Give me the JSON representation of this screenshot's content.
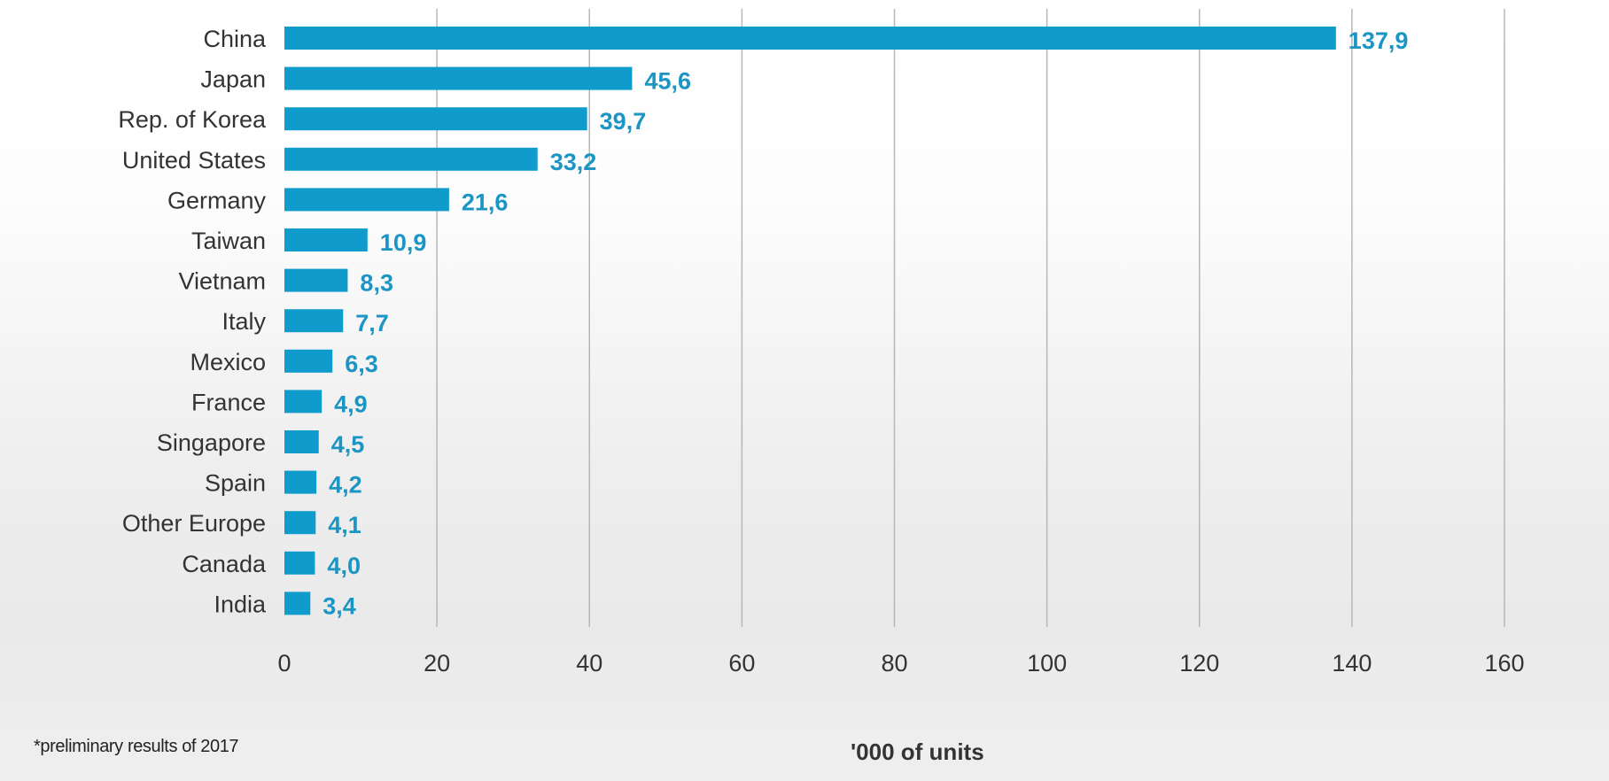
{
  "chart_data": {
    "type": "bar",
    "orientation": "horizontal",
    "categories": [
      "China",
      "Japan",
      "Rep. of Korea",
      "United States",
      "Germany",
      "Taiwan",
      "Vietnam",
      "Italy",
      "Mexico",
      "France",
      "Singapore",
      "Spain",
      "Other Europe",
      "Canada",
      "India"
    ],
    "values": [
      137.9,
      45.6,
      39.7,
      33.2,
      21.6,
      10.9,
      8.3,
      7.7,
      6.3,
      4.9,
      4.5,
      4.2,
      4.1,
      4.0,
      3.4
    ],
    "value_labels": [
      "137,9",
      "45,6",
      "39,7",
      "33,2",
      "21,6",
      "10,9",
      "8,3",
      "7,7",
      "6,3",
      "4,9",
      "4,5",
      "4,2",
      "4,1",
      "4,0",
      "3,4"
    ],
    "xlabel": "'000 of units",
    "xlim": [
      0,
      160
    ],
    "xticks": [
      0,
      20,
      40,
      60,
      80,
      100,
      120,
      140,
      160
    ],
    "grid": "vertical",
    "bar_color": "#0f9ccd",
    "value_label_color": "#1b95c4"
  },
  "footnote": "*preliminary results of 2017"
}
